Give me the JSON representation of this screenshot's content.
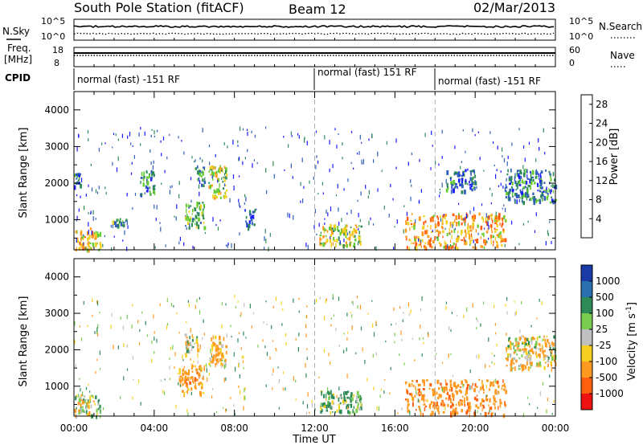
{
  "header": {
    "title": "South Pole Station (fitACF)",
    "beam": "Beam 12",
    "date": "02/Mar/2013"
  },
  "panels": {
    "nsky_label": "N.Sky",
    "nsky_ticks": [
      "10^5",
      "10^0"
    ],
    "nsearch_label": "N.Search",
    "nsearch_ticks": [
      "10^5",
      "10^0"
    ],
    "freq_label": "Freq.",
    "freq_unit": "[MHz]",
    "freq_ticks": [
      "18",
      "8"
    ],
    "nave_label": "Nave",
    "nave_ticks": [
      "60",
      "0"
    ],
    "cpid_label": "CPID",
    "cpid_segments": [
      "normal (fast) -151 RF",
      "normal (fast) 151 RF",
      "normal (fast) -151 RF"
    ]
  },
  "colors": {
    "power": [
      "#1a1aff",
      "#2f5fb8",
      "#2e8b57",
      "#66cc33",
      "#f0d020",
      "#ff9a20",
      "#ff5a10",
      "#ee1111"
    ],
    "velocity": [
      "#1a3aa8",
      "#2a6fb0",
      "#2e8b57",
      "#7acc50",
      "#c0c0c0",
      "#f5d020",
      "#ff9a20",
      "#ff6010",
      "#ee1111"
    ]
  },
  "chart_data": [
    {
      "type": "heatmap",
      "panel": "power",
      "xlabel": "Time UT",
      "ylabel": "Slant Range [km]",
      "xlim": [
        "00:00",
        "24:00"
      ],
      "ylim": [
        180,
        4500
      ],
      "xticks": [
        "00:00",
        "04:00",
        "08:00",
        "12:00",
        "16:00",
        "20:00",
        "00:00"
      ],
      "yticks": [
        1000,
        2000,
        3000,
        4000
      ],
      "colorbar_label": "Power [dB]",
      "colorbar_ticks": [
        4,
        8,
        12,
        16,
        20,
        24,
        28
      ],
      "colorbar_range": [
        0,
        30
      ],
      "cpid_change_hours": [
        12,
        18
      ],
      "echo_regions": [
        {
          "t": [
            0.0,
            1.3
          ],
          "r": [
            200,
            800
          ],
          "value": 18
        },
        {
          "t": [
            0.0,
            0.3
          ],
          "r": [
            1900,
            2300
          ],
          "value": 6
        },
        {
          "t": [
            1.8,
            2.6
          ],
          "r": [
            850,
            1050
          ],
          "value": 10
        },
        {
          "t": [
            3.3,
            4.0
          ],
          "r": [
            1700,
            2400
          ],
          "value": 8
        },
        {
          "t": [
            5.5,
            6.5
          ],
          "r": [
            800,
            1500
          ],
          "value": 12
        },
        {
          "t": [
            6.7,
            7.6
          ],
          "r": [
            1600,
            2500
          ],
          "value": 14
        },
        {
          "t": [
            6.0,
            6.5
          ],
          "r": [
            1900,
            2500
          ],
          "value": 8
        },
        {
          "t": [
            8.5,
            9.0
          ],
          "r": [
            800,
            1300
          ],
          "value": 6
        },
        {
          "t": [
            12.2,
            14.3
          ],
          "r": [
            300,
            900
          ],
          "value": 16
        },
        {
          "t": [
            16.5,
            21.5
          ],
          "r": [
            250,
            1200
          ],
          "value": 20
        },
        {
          "t": [
            18.5,
            20.0
          ],
          "r": [
            1800,
            2400
          ],
          "value": 6
        },
        {
          "t": [
            21.5,
            24.0
          ],
          "r": [
            1500,
            2400
          ],
          "value": 8
        }
      ]
    },
    {
      "type": "heatmap",
      "panel": "velocity",
      "xlabel": "Time UT",
      "ylabel": "Slant Range [km]",
      "xlim": [
        "00:00",
        "24:00"
      ],
      "ylim": [
        180,
        4500
      ],
      "xticks": [
        "00:00",
        "04:00",
        "08:00",
        "12:00",
        "16:00",
        "20:00",
        "00:00"
      ],
      "yticks": [
        1000,
        2000,
        3000,
        4000
      ],
      "colorbar_label": "Velocity [m s^-1]",
      "colorbar_ticks": [
        1000,
        500,
        100,
        25,
        -25,
        -100,
        -500,
        -1000
      ],
      "cpid_change_hours": [
        12,
        18
      ],
      "echo_regions": [
        {
          "t": [
            0.0,
            1.3
          ],
          "r": [
            200,
            800
          ],
          "value": 0
        },
        {
          "t": [
            5.2,
            6.5
          ],
          "r": [
            800,
            1600
          ],
          "value": -300
        },
        {
          "t": [
            5.5,
            6.2
          ],
          "r": [
            1900,
            2500
          ],
          "value": 0
        },
        {
          "t": [
            6.7,
            7.6
          ],
          "r": [
            1600,
            2400
          ],
          "value": -200
        },
        {
          "t": [
            12.2,
            14.3
          ],
          "r": [
            300,
            900
          ],
          "value": 150
        },
        {
          "t": [
            16.5,
            21.5
          ],
          "r": [
            250,
            1200
          ],
          "value": -400
        },
        {
          "t": [
            21.5,
            24.0
          ],
          "r": [
            1500,
            2400
          ],
          "value": -100
        }
      ]
    }
  ]
}
